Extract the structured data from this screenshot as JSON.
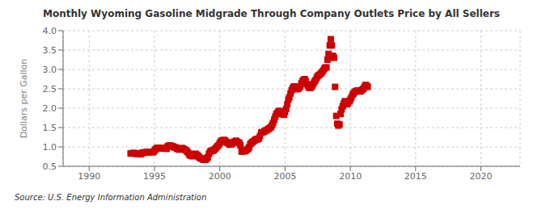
{
  "chart_data": {
    "type": "scatter",
    "title": "Monthly Wyoming Gasoline Midgrade Through Company Outlets Price by All Sellers",
    "ylabel": "Dollars per Gallon",
    "annotation": "Source: U.S. Energy Information Administration",
    "xlim": [
      1988,
      2023
    ],
    "ylim": [
      0.5,
      4.0
    ],
    "xticks": [
      1990,
      1995,
      2000,
      2005,
      2010,
      2015,
      2020
    ],
    "yticks": [
      0.5,
      {
        "value": 1.0,
        "label": "1.0"
      },
      1.5,
      {
        "value": 2.0,
        "label": "2.0"
      },
      2.5,
      {
        "value": 3.0,
        "label": "3.0"
      },
      3.5,
      {
        "value": 4.0,
        "label": "4.0"
      }
    ],
    "color": "#CC0000",
    "marker": "square",
    "grid": true,
    "x": [
      1993.17,
      1993.25,
      1993.33,
      1993.42,
      1993.5,
      1993.58,
      1993.67,
      1993.75,
      1993.83,
      1993.92,
      1994.0,
      1994.08,
      1994.17,
      1994.25,
      1994.33,
      1994.42,
      1994.5,
      1994.58,
      1994.67,
      1994.75,
      1994.83,
      1994.92,
      1995.0,
      1995.08,
      1995.17,
      1995.25,
      1995.33,
      1995.42,
      1995.5,
      1995.58,
      1995.67,
      1995.75,
      1995.83,
      1995.92,
      1996.0,
      1996.08,
      1996.17,
      1996.25,
      1996.33,
      1996.42,
      1996.5,
      1996.58,
      1996.67,
      1996.75,
      1996.83,
      1996.92,
      1997.0,
      1997.08,
      1997.17,
      1997.25,
      1997.33,
      1997.42,
      1997.5,
      1997.58,
      1997.67,
      1997.75,
      1997.83,
      1997.92,
      1998.0,
      1998.08,
      1998.17,
      1998.25,
      1998.33,
      1998.42,
      1998.5,
      1998.58,
      1998.67,
      1998.75,
      1998.83,
      1998.92,
      1999.0,
      1999.08,
      1999.17,
      1999.25,
      1999.33,
      1999.42,
      1999.5,
      1999.58,
      1999.67,
      1999.75,
      1999.83,
      1999.92,
      2000.0,
      2000.08,
      2000.17,
      2000.25,
      2000.33,
      2000.42,
      2000.5,
      2000.58,
      2000.67,
      2000.75,
      2000.83,
      2000.92,
      2001.0,
      2001.08,
      2001.17,
      2001.25,
      2001.33,
      2001.42,
      2001.5,
      2001.58,
      2001.67,
      2001.75,
      2001.83,
      2001.92,
      2002.0,
      2002.08,
      2002.17,
      2002.25,
      2002.33,
      2002.42,
      2002.5,
      2002.58,
      2002.67,
      2002.75,
      2002.83,
      2002.92,
      2003.0,
      2003.08,
      2003.17,
      2003.25,
      2003.33,
      2003.42,
      2003.5,
      2003.58,
      2003.67,
      2003.75,
      2003.83,
      2003.92,
      2004.0,
      2004.08,
      2004.17,
      2004.25,
      2004.33,
      2004.42,
      2004.5,
      2004.58,
      2004.67,
      2004.75,
      2004.83,
      2004.92,
      2005.0,
      2005.08,
      2005.17,
      2005.25,
      2005.33,
      2005.42,
      2005.5,
      2005.58,
      2005.67,
      2005.75,
      2005.83,
      2005.92,
      2006.0,
      2006.08,
      2006.17,
      2006.25,
      2006.33,
      2006.42,
      2006.5,
      2006.58,
      2006.67,
      2006.75,
      2006.83,
      2006.92,
      2007.0,
      2007.08,
      2007.17,
      2007.25,
      2007.33,
      2007.42,
      2007.5,
      2007.58,
      2007.67,
      2007.75,
      2007.83,
      2007.92,
      2008.0,
      2008.08,
      2008.17,
      2008.25,
      2008.33,
      2008.42,
      2008.5,
      2008.58,
      2008.67,
      2008.75,
      2008.83,
      2008.92,
      2009.0,
      2009.08,
      2009.17,
      2009.25,
      2009.33,
      2009.42,
      2009.5,
      2009.58,
      2009.67,
      2009.75,
      2009.83,
      2009.92,
      2010.0,
      2010.08,
      2010.17,
      2010.25,
      2010.33,
      2010.42,
      2010.5,
      2010.58,
      2010.67,
      2010.75,
      2010.83,
      2010.92,
      2011.0,
      2011.08,
      2011.17,
      2011.25,
      2011.33
    ],
    "values": [
      0.83,
      0.83,
      0.84,
      0.84,
      0.84,
      0.83,
      0.82,
      0.82,
      0.82,
      0.81,
      0.83,
      0.85,
      0.86,
      0.85,
      0.86,
      0.87,
      0.87,
      0.87,
      0.87,
      0.87,
      0.86,
      0.87,
      0.9,
      0.94,
      0.97,
      0.97,
      0.97,
      0.97,
      0.97,
      0.96,
      0.96,
      0.97,
      0.96,
      0.95,
      1.01,
      1.03,
      1.04,
      1.03,
      1.02,
      1.01,
      0.99,
      0.99,
      0.97,
      0.95,
      0.94,
      0.93,
      0.96,
      0.97,
      0.96,
      0.94,
      0.93,
      0.91,
      0.88,
      0.85,
      0.8,
      0.78,
      0.77,
      0.76,
      0.79,
      0.82,
      0.82,
      0.79,
      0.77,
      0.74,
      0.71,
      0.7,
      0.69,
      0.67,
      0.67,
      0.67,
      0.7,
      0.73,
      0.82,
      0.87,
      0.9,
      0.9,
      0.91,
      0.93,
      0.96,
      0.99,
      1.02,
      1.05,
      1.1,
      1.14,
      1.17,
      1.17,
      1.18,
      1.16,
      1.13,
      1.11,
      1.09,
      1.06,
      1.06,
      1.07,
      1.1,
      1.13,
      1.14,
      1.16,
      1.13,
      1.12,
      1.1,
      1.04,
      0.88,
      0.89,
      0.89,
      0.89,
      0.91,
      0.93,
      0.95,
      0.99,
      1.07,
      1.1,
      1.13,
      1.14,
      1.17,
      1.19,
      1.2,
      1.2,
      1.22,
      1.28,
      1.37,
      1.38,
      1.38,
      1.4,
      1.42,
      1.43,
      1.45,
      1.47,
      1.49,
      1.51,
      1.56,
      1.62,
      1.7,
      1.78,
      1.85,
      1.88,
      1.92,
      1.93,
      1.88,
      1.85,
      1.85,
      1.83,
      1.9,
      1.98,
      2.1,
      2.22,
      2.28,
      2.38,
      2.46,
      2.52,
      2.56,
      2.55,
      2.52,
      2.49,
      2.5,
      2.53,
      2.56,
      2.64,
      2.7,
      2.73,
      2.75,
      2.7,
      2.62,
      2.57,
      2.53,
      2.52,
      2.54,
      2.58,
      2.63,
      2.68,
      2.72,
      2.78,
      2.83,
      2.85,
      2.87,
      2.9,
      2.93,
      2.97,
      3.02,
      3.05,
      3.05,
      3.25,
      3.4,
      3.62,
      3.78,
      3.62,
      3.35,
      3.3,
      2.55,
      1.8,
      1.6,
      1.55,
      1.58,
      1.85,
      1.97,
      2.05,
      2.12,
      2.18,
      2.15,
      2.1,
      2.13,
      2.18,
      2.22,
      2.28,
      2.35,
      2.38,
      2.42,
      2.44,
      2.45,
      2.45,
      2.45,
      2.43,
      2.45,
      2.48,
      2.5,
      2.55,
      2.6,
      2.58,
      2.55
    ]
  }
}
